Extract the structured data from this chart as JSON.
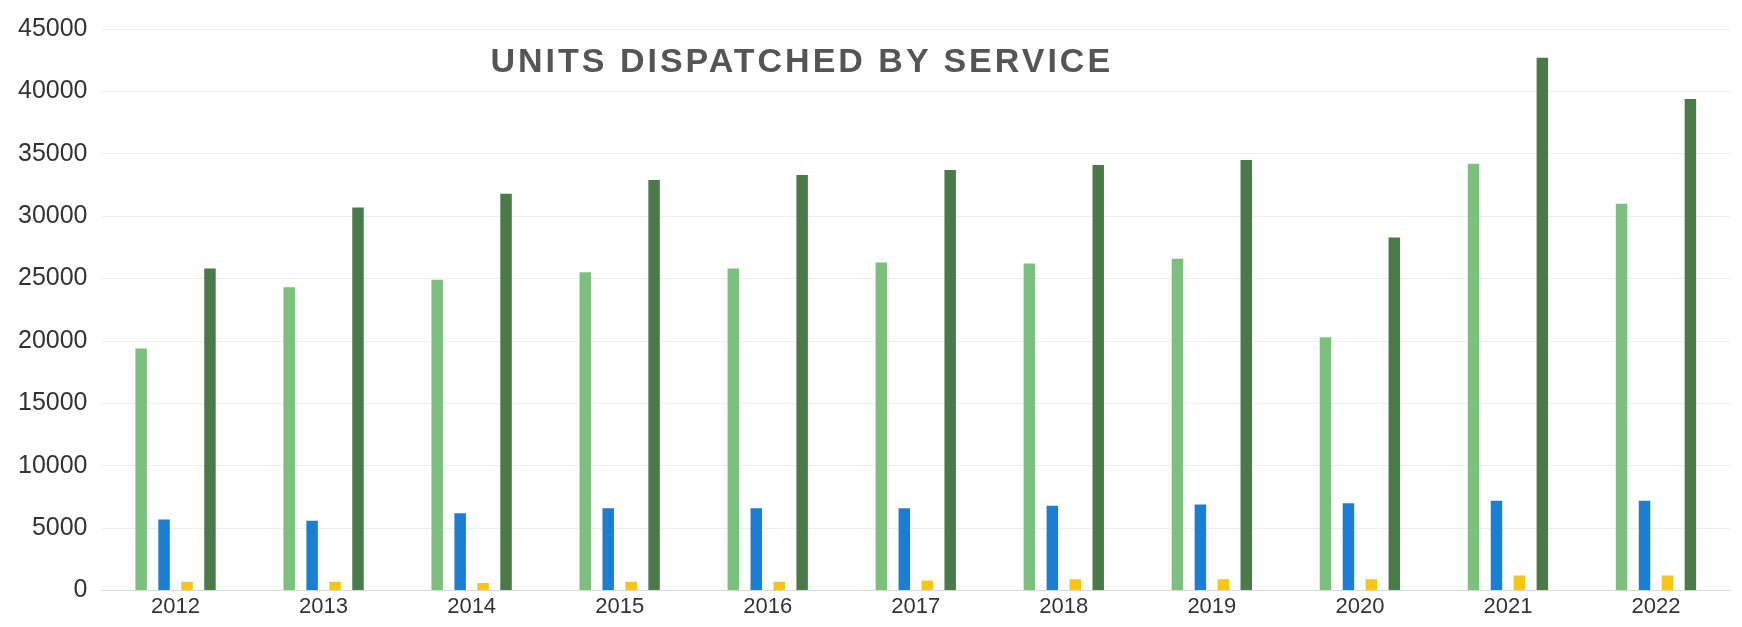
{
  "chart_data": {
    "type": "bar",
    "title": "UNITS DISPATCHED BY SERVICE",
    "categories": [
      "2012",
      "2013",
      "2014",
      "2015",
      "2016",
      "2017",
      "2018",
      "2019",
      "2020",
      "2021",
      "2022"
    ],
    "series": [
      {
        "color": "#7dbf7f",
        "values": [
          19400,
          24300,
          24900,
          25500,
          25800,
          26300,
          26200,
          26600,
          20300,
          34200,
          31000
        ]
      },
      {
        "color": "#1a7fd4",
        "values": [
          5700,
          5600,
          6200,
          6600,
          6600,
          6600,
          6800,
          6900,
          7000,
          7200,
          7200
        ]
      },
      {
        "color": "#f5c518",
        "values": [
          700,
          700,
          600,
          700,
          700,
          800,
          900,
          900,
          900,
          1200,
          1200
        ]
      },
      {
        "color": "#4a7a48",
        "values": [
          25800,
          30700,
          31800,
          32900,
          33300,
          33700,
          34100,
          34500,
          28300,
          42700,
          39400
        ]
      }
    ],
    "ylim": [
      0,
      45000
    ],
    "yticks": [
      0,
      5000,
      10000,
      15000,
      20000,
      25000,
      30000,
      35000,
      40000,
      45000
    ],
    "grid": "y"
  }
}
